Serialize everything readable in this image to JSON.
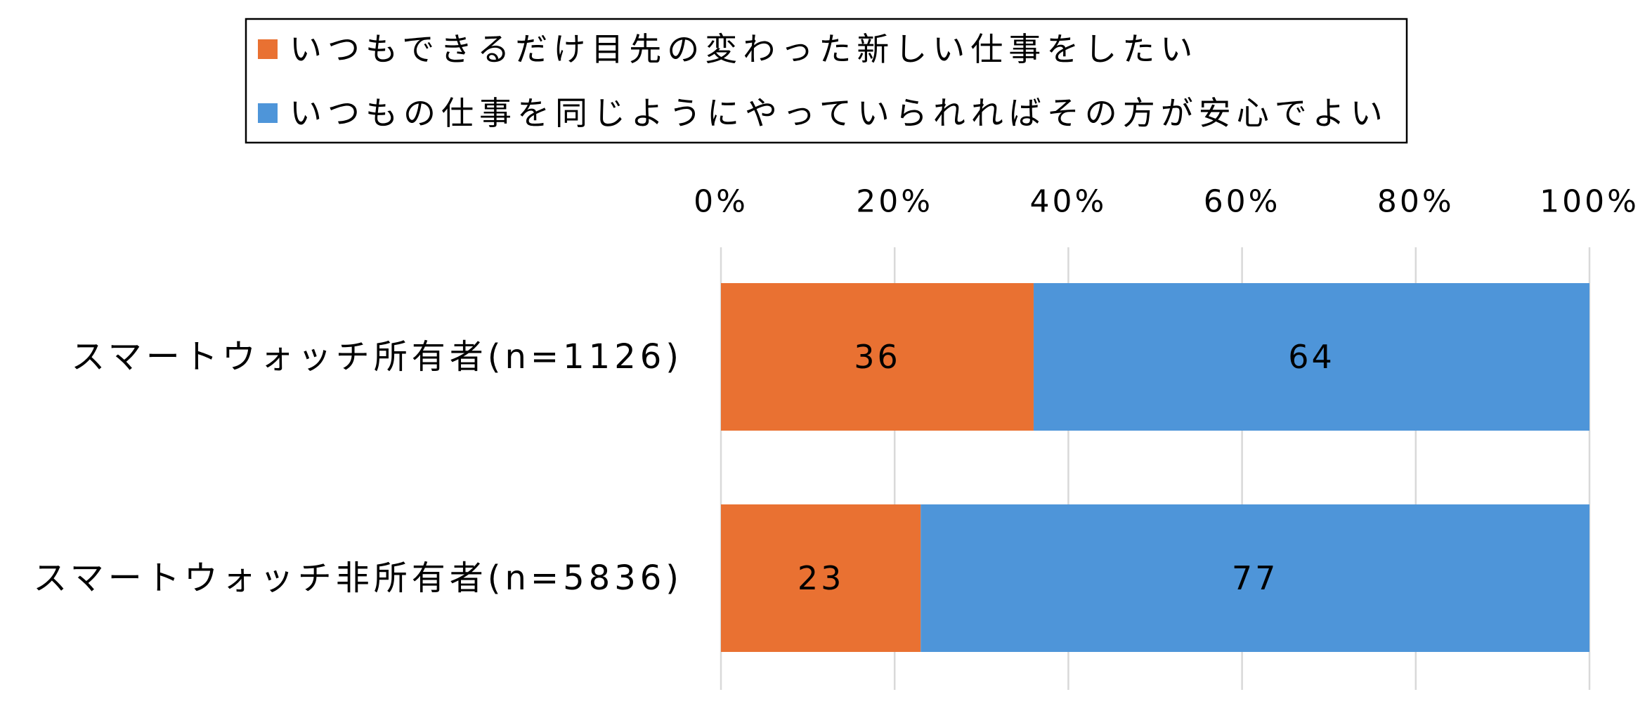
{
  "chart_data": {
    "type": "bar",
    "orientation": "horizontal",
    "stacked": true,
    "categories": [
      "スマートウォッチ所有者(n=1126)",
      "スマートウォッチ非所有者(n=5836)"
    ],
    "series": [
      {
        "name": "いつもできるだけ目先の変わった新しい仕事をしたい",
        "color": "#E97132",
        "values": [
          36,
          23
        ]
      },
      {
        "name": "いつもの仕事を同じようにやっていられればその方が安心でよい",
        "color": "#4E95D9",
        "values": [
          64,
          77
        ]
      }
    ],
    "xlim": [
      0,
      100
    ],
    "xticks": [
      0,
      20,
      40,
      60,
      80,
      100
    ],
    "xtick_labels": [
      "0%",
      "20%",
      "40%",
      "60%",
      "80%",
      "100%"
    ],
    "x_axis_position": "top",
    "grid": true,
    "gridline_color": "#D9D9D9",
    "legend_position": "top",
    "title": "",
    "xlabel": "",
    "ylabel": ""
  }
}
